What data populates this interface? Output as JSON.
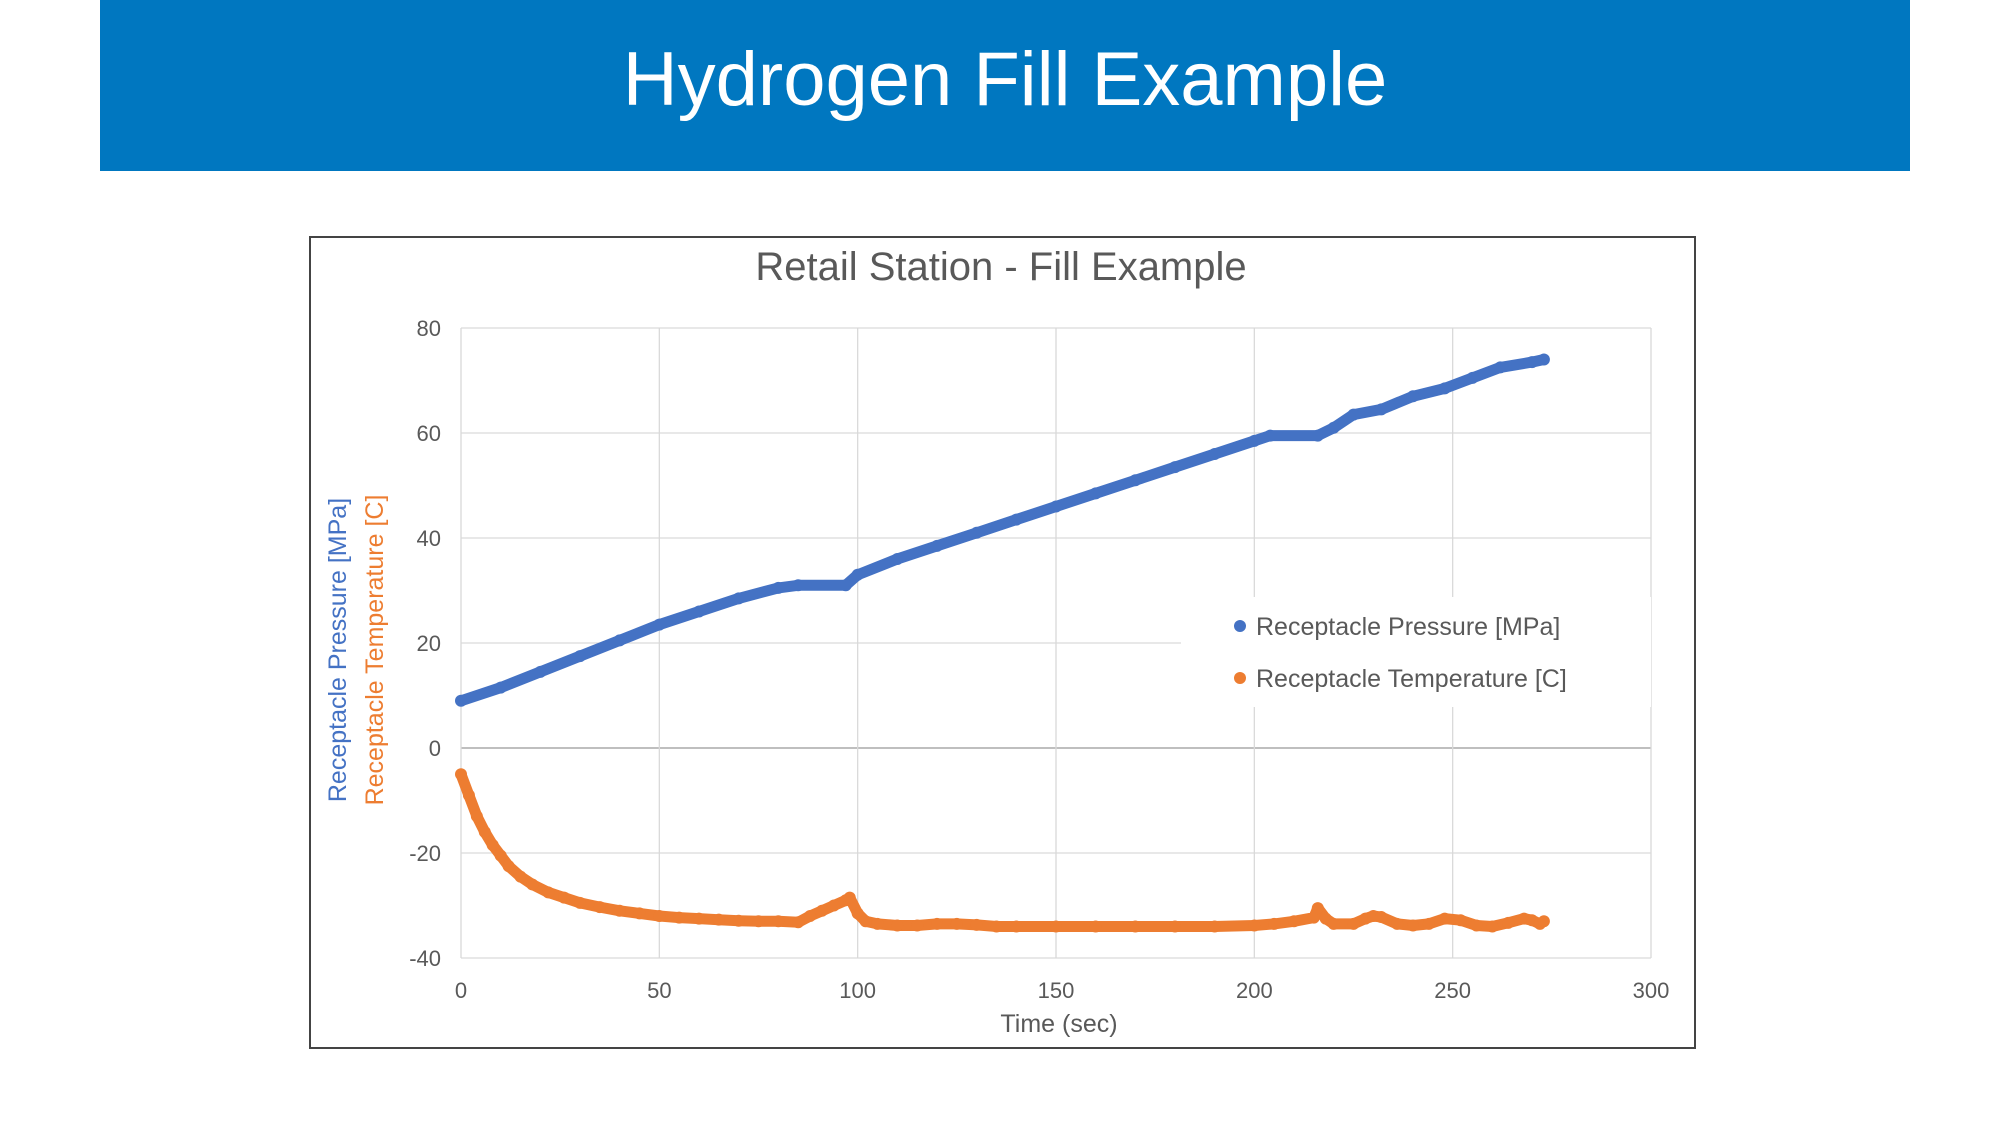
{
  "slide": {
    "title": "Hydrogen Fill Example",
    "banner_color": "#0077c0"
  },
  "chart_data": {
    "type": "scatter",
    "title": "Retail Station - Fill Example",
    "xlabel": "Time (sec)",
    "ylabel": "Receptacle Pressure [MPa]",
    "ylabel2": "Receptacle Temperature [C]",
    "xlim": [
      0,
      300
    ],
    "ylim": [
      -40,
      80
    ],
    "xticks": [
      0,
      50,
      100,
      150,
      200,
      250,
      300
    ],
    "yticks": [
      -40,
      -20,
      0,
      20,
      40,
      60,
      80
    ],
    "grid": true,
    "legend_position": "right",
    "series": [
      {
        "name": "Receptacle Pressure [MPa]",
        "color": "#4472c4",
        "x": [
          0,
          10,
          20,
          30,
          40,
          50,
          60,
          70,
          80,
          85,
          97,
          100,
          110,
          120,
          130,
          140,
          150,
          160,
          170,
          180,
          190,
          200,
          204,
          216,
          220,
          225,
          232,
          240,
          248,
          255,
          262,
          270,
          273
        ],
        "y": [
          9,
          11.5,
          14.5,
          17.5,
          20.5,
          23.5,
          26,
          28.5,
          30.5,
          31,
          31,
          33,
          36,
          38.5,
          41,
          43.5,
          46,
          48.5,
          51,
          53.5,
          56,
          58.5,
          59.5,
          59.5,
          61,
          63.5,
          64.5,
          67,
          68.5,
          70.5,
          72.5,
          73.5,
          74
        ]
      },
      {
        "name": "Receptacle Temperature [C]",
        "color": "#ed7d31",
        "x": [
          0,
          2,
          4,
          6,
          8,
          10,
          12,
          15,
          18,
          22,
          26,
          30,
          35,
          40,
          45,
          50,
          55,
          60,
          65,
          70,
          75,
          80,
          85,
          88,
          91,
          94,
          97,
          98,
          100,
          102,
          105,
          110,
          115,
          120,
          125,
          130,
          135,
          140,
          150,
          160,
          170,
          180,
          190,
          200,
          205,
          210,
          215,
          216,
          218,
          220,
          225,
          228,
          230,
          232,
          236,
          240,
          244,
          248,
          252,
          256,
          260,
          264,
          268,
          270,
          272,
          273
        ],
        "y": [
          -5,
          -9,
          -13,
          -16,
          -18.5,
          -20.5,
          -22.5,
          -24.5,
          -26,
          -27.5,
          -28.5,
          -29.5,
          -30.3,
          -31,
          -31.5,
          -32,
          -32.3,
          -32.5,
          -32.7,
          -32.9,
          -33,
          -33,
          -33.2,
          -32,
          -31,
          -30,
          -29,
          -28.5,
          -31.5,
          -33,
          -33.5,
          -33.8,
          -33.8,
          -33.5,
          -33.5,
          -33.7,
          -34,
          -34,
          -34,
          -34,
          -34,
          -34,
          -34,
          -33.8,
          -33.5,
          -33,
          -32.3,
          -30.5,
          -32.5,
          -33.5,
          -33.5,
          -32.5,
          -32,
          -32.2,
          -33.5,
          -33.8,
          -33.5,
          -32.5,
          -32.8,
          -33.8,
          -34,
          -33.3,
          -32.5,
          -32.8,
          -33.5,
          -33
        ]
      }
    ]
  }
}
